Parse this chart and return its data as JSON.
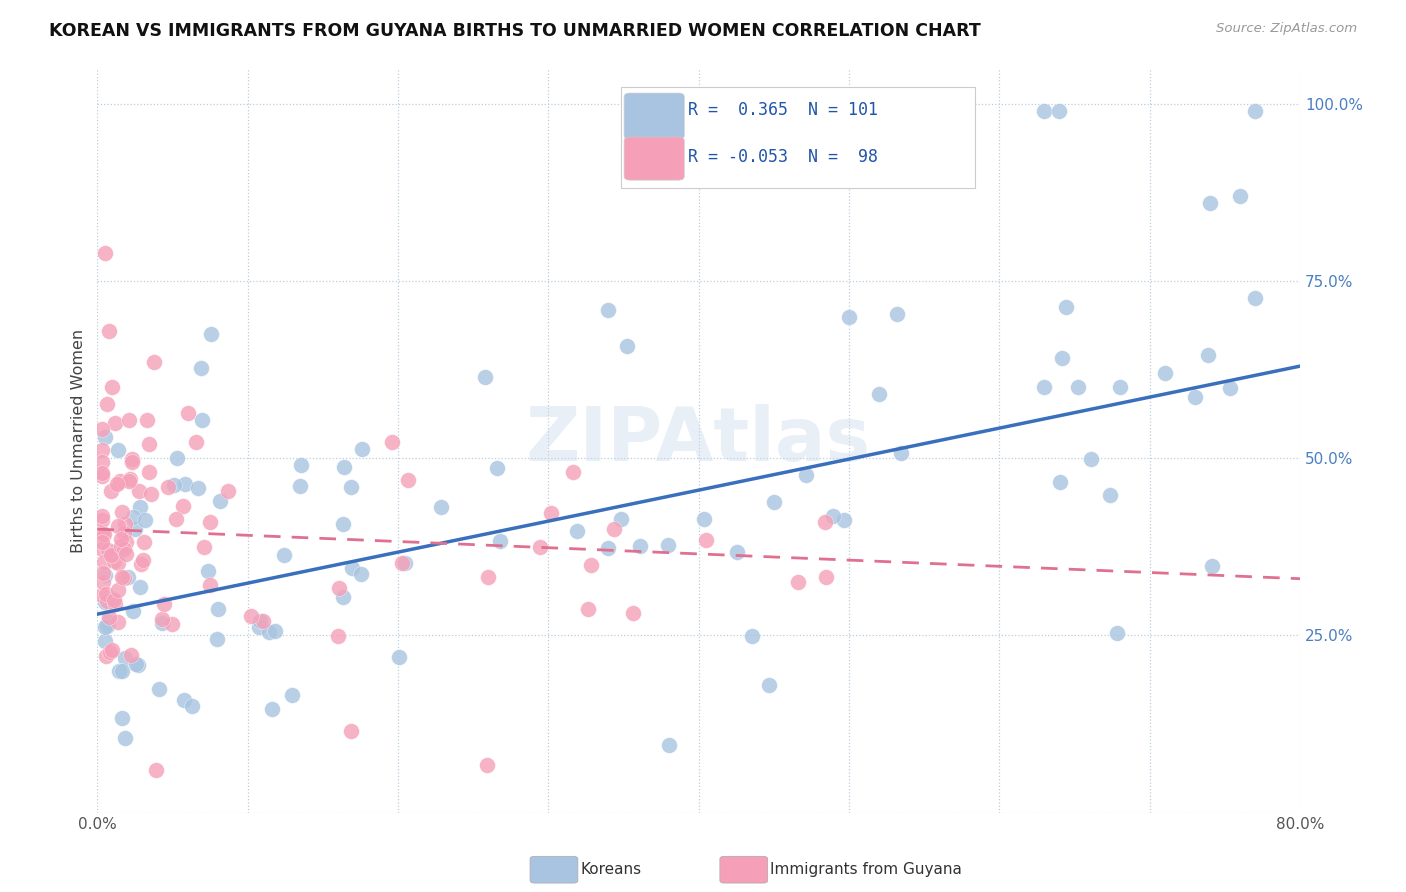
{
  "title": "KOREAN VS IMMIGRANTS FROM GUYANA BIRTHS TO UNMARRIED WOMEN CORRELATION CHART",
  "source": "Source: ZipAtlas.com",
  "ylabel": "Births to Unmarried Women",
  "xlim": [
    0.0,
    0.8
  ],
  "ylim": [
    0.0,
    1.05
  ],
  "blue_color": "#A8C4E0",
  "pink_color": "#F5A0B8",
  "blue_line_color": "#3A6FBD",
  "pink_line_color": "#E07090",
  "watermark": "ZIPAtlas",
  "legend_R_blue": "0.365",
  "legend_N_blue": "101",
  "legend_R_pink": "-0.053",
  "legend_N_pink": "98",
  "blue_line_x0": 0.0,
  "blue_line_y0": 0.28,
  "blue_line_x1": 0.8,
  "blue_line_y1": 0.63,
  "pink_line_x0": 0.0,
  "pink_line_y0": 0.4,
  "pink_line_x1": 0.8,
  "pink_line_y1": 0.33
}
